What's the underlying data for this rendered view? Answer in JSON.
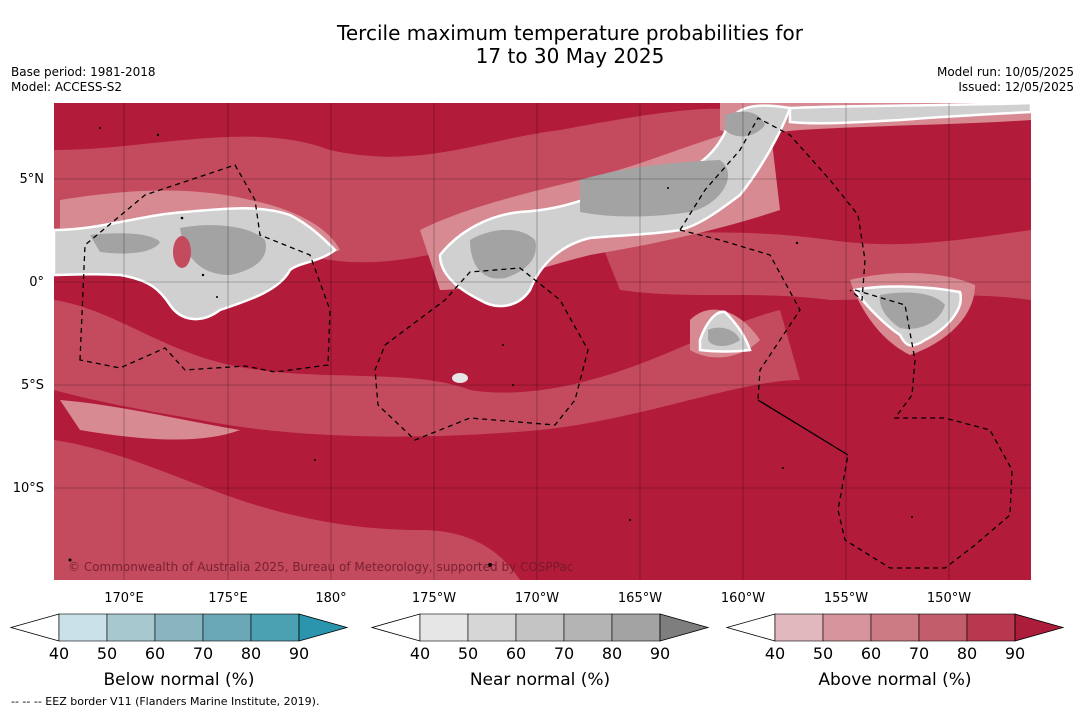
{
  "header": {
    "title_line1": "Tercile maximum temperature probabilities for",
    "title_line2": "17 to 30 May 2025",
    "base_period": "Base period: 1981-2018",
    "model": "Model: ACCESS-S2",
    "model_run": "Model run: 10/05/2025",
    "issued": "Issued: 12/05/2025"
  },
  "map": {
    "lat_labels": [
      "5°N",
      "0°",
      "5°S",
      "10°S"
    ],
    "lon_labels": [
      "170°E",
      "175°E",
      "180°",
      "175°W",
      "170°W",
      "165°W",
      "160°W",
      "155°W",
      "150°W"
    ],
    "copyright": "© Commonwealth of Australia 2025, Bureau of Meteorology, supported by COSPPac",
    "colors": {
      "above_dark": "#b31b3b",
      "above_mid": "#c44b5e",
      "above_light": "#d88a93",
      "near_dark": "#a3a3a3",
      "near_light": "#d0d0d0"
    }
  },
  "legends": [
    {
      "label": "Below normal (%)",
      "ticks": [
        "40",
        "50",
        "60",
        "70",
        "80",
        "90"
      ],
      "colors": [
        "#c9e1e7",
        "#a7c8cf",
        "#89b5c0",
        "#6aa8b8",
        "#4ba1b2",
        "#2a95ad"
      ]
    },
    {
      "label": "Near normal (%)",
      "ticks": [
        "40",
        "50",
        "60",
        "70",
        "80",
        "90"
      ],
      "colors": [
        "#e6e6e6",
        "#d6d6d6",
        "#c4c4c4",
        "#b4b4b4",
        "#a3a3a3",
        "#7e7e7e"
      ]
    },
    {
      "label": "Above normal (%)",
      "ticks": [
        "40",
        "50",
        "60",
        "70",
        "80",
        "90"
      ],
      "colors": [
        "#e0b8be",
        "#d5949c",
        "#cc7a84",
        "#c25e6c",
        "#b8394f",
        "#ab1d3a"
      ]
    }
  ],
  "footer": {
    "eez_note": "--  --  -- EEZ border V11 (Flanders Marine Institute, 2019)."
  }
}
